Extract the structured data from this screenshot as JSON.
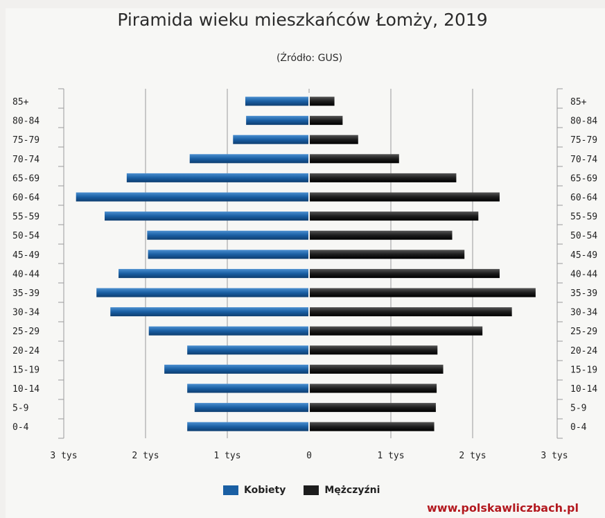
{
  "title": "Piramida wieku mieszkańców Łomży, 2019",
  "subtitle": "(Źródło: GUS)",
  "source_link": "www.polskawliczbach.pl",
  "colors": {
    "kobiety": "#1a5fa3",
    "mezczyzni": "#1d1d1d",
    "grid": "#9a9a9a",
    "link": "#b3191f"
  },
  "chart_data": {
    "type": "bar",
    "orientation": "horizontal-pyramid",
    "title": "Piramida wieku mieszkańców Łomży, 2019",
    "subtitle": "(Źródło: GUS)",
    "categories": [
      "85+",
      "80-84",
      "75-79",
      "70-74",
      "65-69",
      "60-64",
      "55-59",
      "50-54",
      "45-49",
      "40-44",
      "35-39",
      "30-34",
      "25-29",
      "20-24",
      "15-19",
      "10-14",
      "5-9",
      "0-4"
    ],
    "series": [
      {
        "name": "Kobiety",
        "side": "left",
        "values": [
          780,
          770,
          930,
          1460,
          2230,
          2850,
          2500,
          1980,
          1970,
          2330,
          2600,
          2430,
          1960,
          1490,
          1770,
          1490,
          1400,
          1490
        ]
      },
      {
        "name": "Mężczyźni",
        "side": "right",
        "values": [
          310,
          410,
          600,
          1100,
          1800,
          2330,
          2070,
          1750,
          1900,
          2330,
          2770,
          2480,
          2120,
          1570,
          1640,
          1560,
          1550,
          1530
        ]
      }
    ],
    "xlim": [
      -3000,
      3000
    ],
    "x_ticks": [
      {
        "value": -3000,
        "label": "3 tys"
      },
      {
        "value": -2000,
        "label": "2 tys"
      },
      {
        "value": -1000,
        "label": "1 tys"
      },
      {
        "value": 0,
        "label": "0"
      },
      {
        "value": 1000,
        "label": "1 tys"
      },
      {
        "value": 2000,
        "label": "2 tys"
      },
      {
        "value": 3000,
        "label": "3 tys"
      }
    ],
    "grid": true,
    "legend": "bottom-center"
  }
}
